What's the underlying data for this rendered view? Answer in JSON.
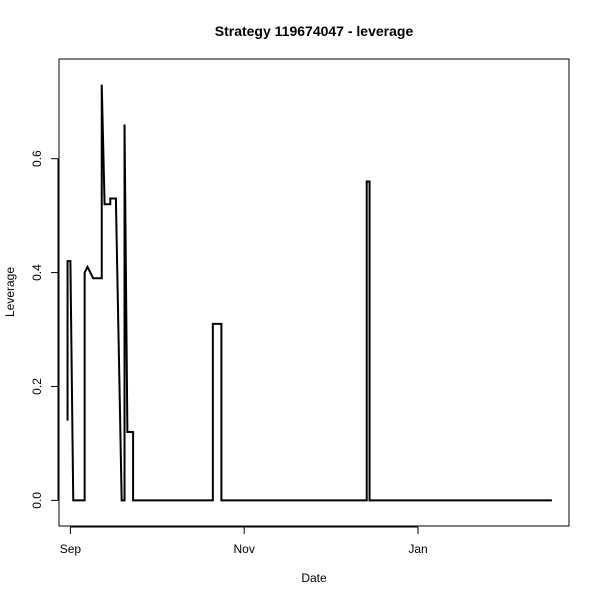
{
  "chart_data": {
    "type": "line",
    "step": true,
    "title": "Strategy 119674047 - leverage",
    "xlabel": "Date",
    "ylabel": "Leverage",
    "xlim": [
      "2015-08-28",
      "2016-02-23"
    ],
    "ylim": [
      -0.045,
      0.775
    ],
    "x_ticks": [
      {
        "date": "2015-09-01",
        "label": "Sep"
      },
      {
        "date": "2015-11-01",
        "label": "Nov"
      },
      {
        "date": "2016-01-01",
        "label": "Jan"
      }
    ],
    "y_ticks": [
      {
        "value": 0.0,
        "label": "0.0"
      },
      {
        "value": 0.2,
        "label": "0.2"
      },
      {
        "value": 0.4,
        "label": "0.4"
      },
      {
        "value": 0.6,
        "label": "0.6"
      }
    ],
    "grid": false,
    "legend": "none",
    "line_color": "#000000",
    "series": [
      {
        "points": [
          {
            "x": "2015-08-31",
            "y": 0.14
          },
          {
            "x": "2015-08-31",
            "y": 0.42
          },
          {
            "x": "2015-09-01",
            "y": 0.42
          },
          {
            "x": "2015-09-02",
            "y": 0.0
          },
          {
            "x": "2015-09-06",
            "y": 0.0
          },
          {
            "x": "2015-09-06",
            "y": 0.4
          },
          {
            "x": "2015-09-07",
            "y": 0.41
          },
          {
            "x": "2015-09-09",
            "y": 0.39
          },
          {
            "x": "2015-09-12",
            "y": 0.39
          },
          {
            "x": "2015-09-12",
            "y": 0.73
          },
          {
            "x": "2015-09-13",
            "y": 0.52
          },
          {
            "x": "2015-09-15",
            "y": 0.52
          },
          {
            "x": "2015-09-15",
            "y": 0.53
          },
          {
            "x": "2015-09-17",
            "y": 0.53
          },
          {
            "x": "2015-09-17",
            "y": 0.52
          },
          {
            "x": "2015-09-19",
            "y": 0.0
          },
          {
            "x": "2015-09-20",
            "y": 0.0
          },
          {
            "x": "2015-09-20",
            "y": 0.66
          },
          {
            "x": "2015-09-21",
            "y": 0.12
          },
          {
            "x": "2015-09-23",
            "y": 0.12
          },
          {
            "x": "2015-09-23",
            "y": 0.0
          },
          {
            "x": "2015-10-21",
            "y": 0.0
          },
          {
            "x": "2015-10-21",
            "y": 0.31
          },
          {
            "x": "2015-10-24",
            "y": 0.31
          },
          {
            "x": "2015-10-24",
            "y": 0.0
          },
          {
            "x": "2015-12-14",
            "y": 0.0
          },
          {
            "x": "2015-12-14",
            "y": 0.56
          },
          {
            "x": "2015-12-15",
            "y": 0.56
          },
          {
            "x": "2015-12-15",
            "y": 0.0
          },
          {
            "x": "2016-02-17",
            "y": 0.0
          }
        ]
      }
    ]
  }
}
